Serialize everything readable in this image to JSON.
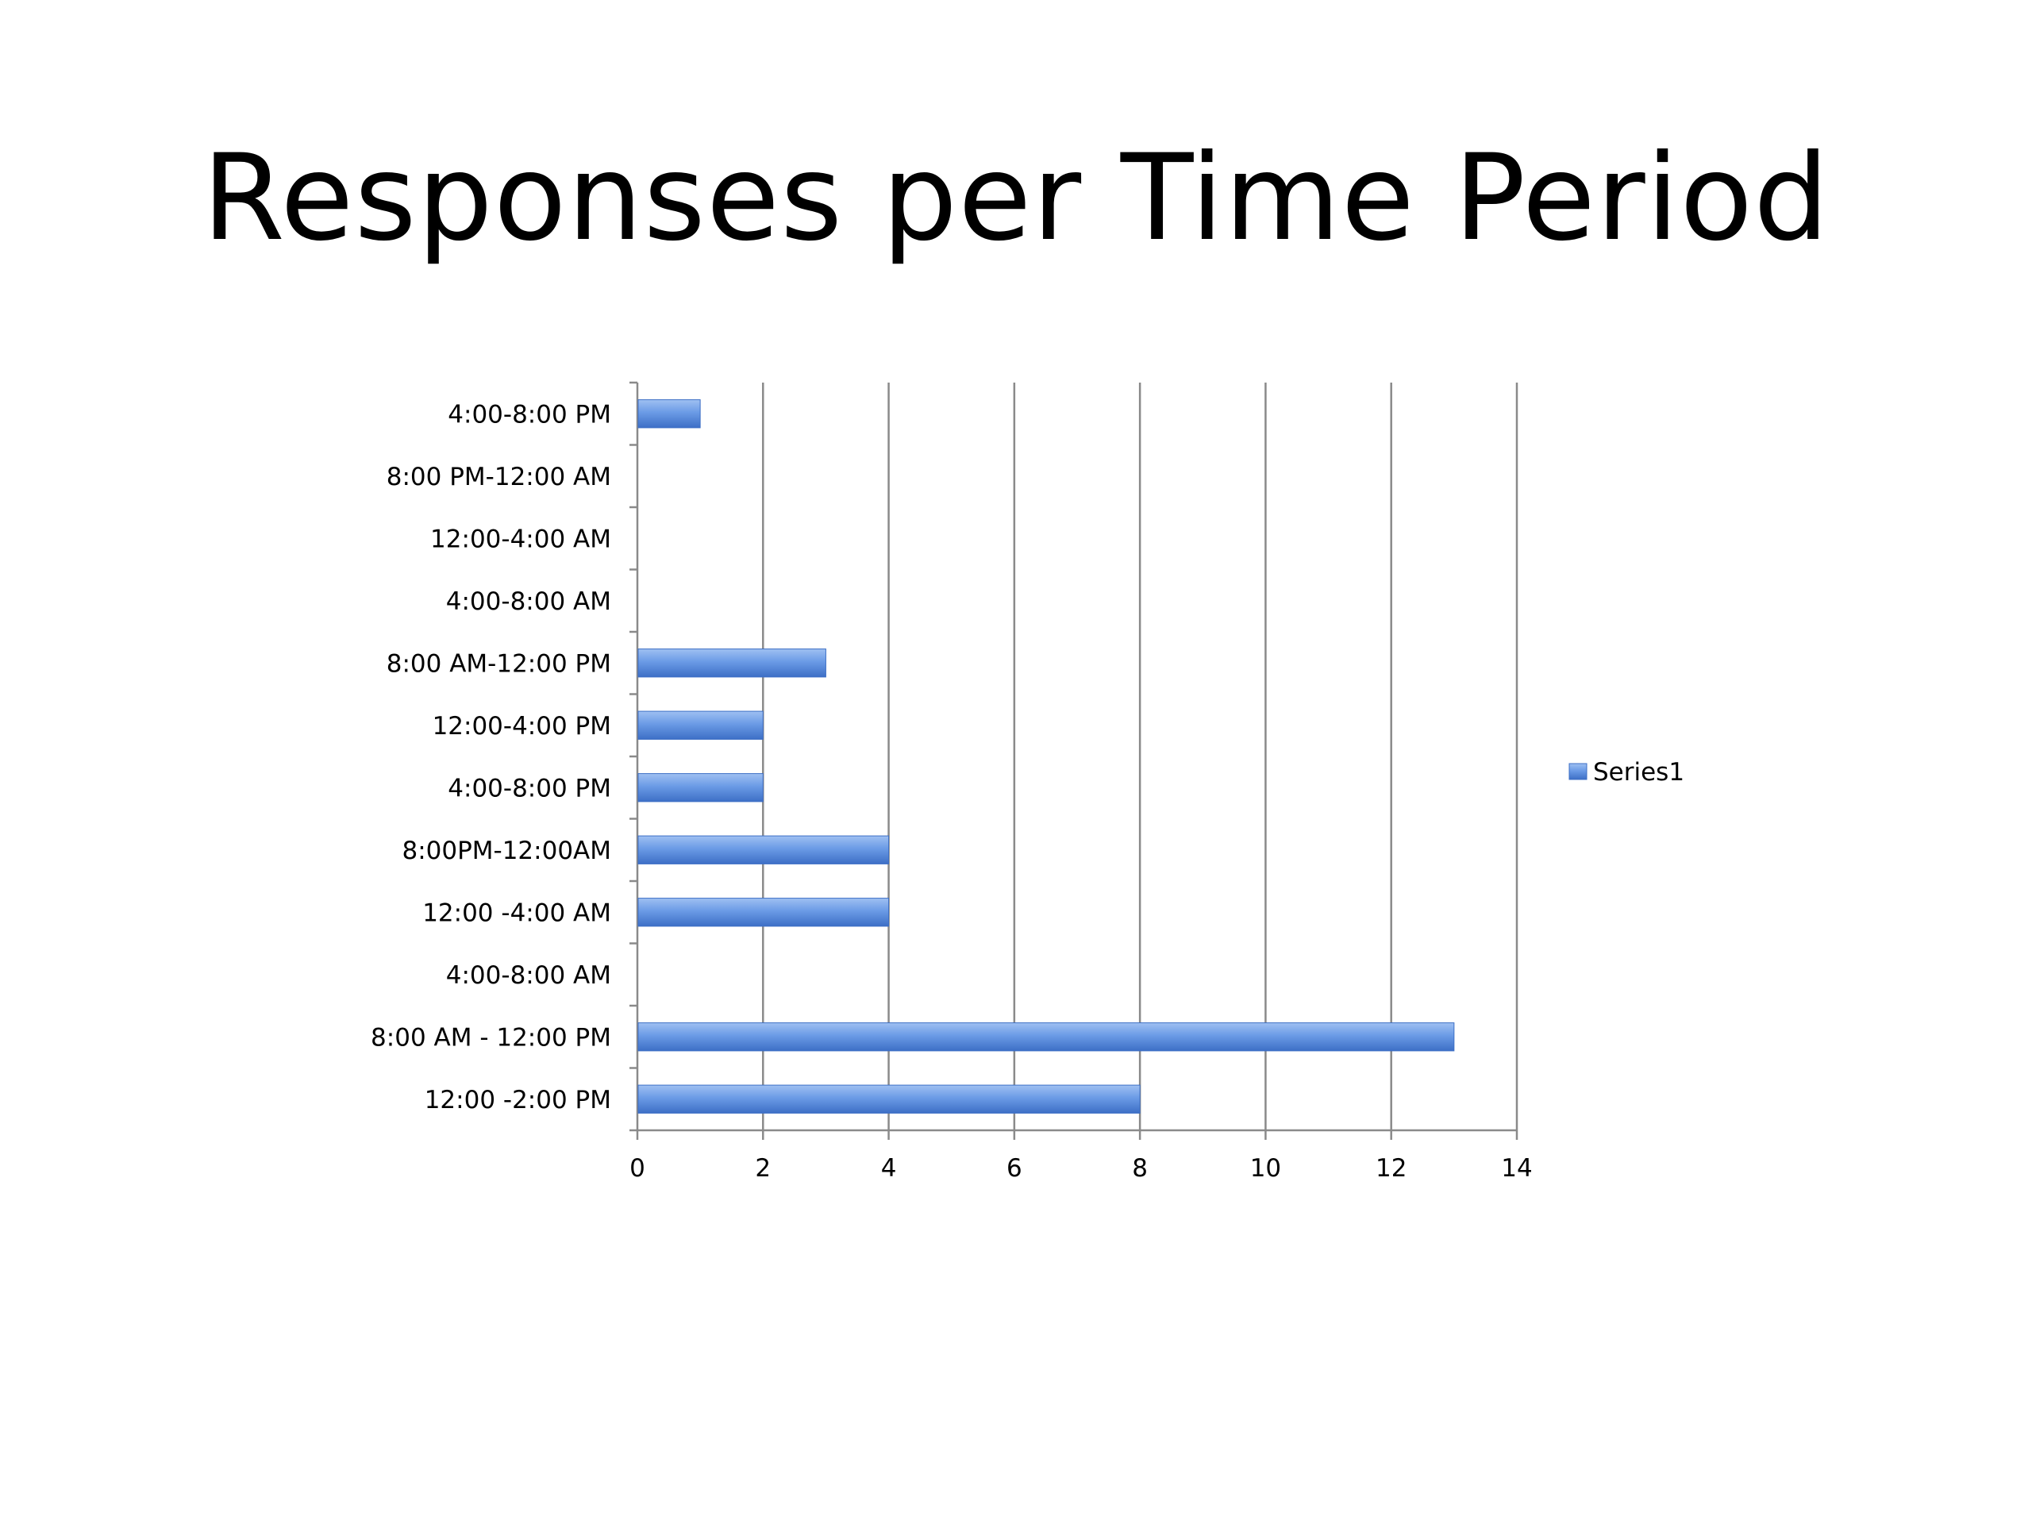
{
  "slide": {
    "title": "Responses per Time Period"
  },
  "chart_data": {
    "type": "bar",
    "orientation": "horizontal",
    "title": "Responses per Time Period",
    "categories": [
      "4:00-8:00 PM",
      "8:00 PM-12:00 AM",
      "12:00-4:00 AM",
      "4:00-8:00 AM",
      "8:00 AM-12:00 PM",
      "12:00-4:00 PM",
      "4:00-8:00 PM",
      "8:00PM-12:00AM",
      "12:00 -4:00 AM",
      "4:00-8:00 AM",
      "8:00 AM - 12:00 PM",
      "12:00 -2:00 PM"
    ],
    "series": [
      {
        "name": "Series1",
        "values": [
          1,
          0,
          0,
          0,
          3,
          2,
          2,
          4,
          4,
          0,
          13,
          8
        ],
        "color": "#5b8fe0"
      }
    ],
    "xlim": [
      0,
      14
    ],
    "xticks": [
      0,
      2,
      4,
      6,
      8,
      10,
      12,
      14
    ],
    "xtick_labels": [
      "0",
      "2",
      "4",
      "6",
      "8",
      "10",
      "12",
      "14"
    ],
    "xlabel": "",
    "ylabel": "",
    "grid": "vertical major gridlines",
    "legend": {
      "position": "right",
      "entries": [
        "Series1"
      ]
    },
    "colors": {
      "bar_fill": "#5b8fe0",
      "bar_highlight": "#9fc0f2",
      "bar_shadow": "#3d6fc6",
      "gridline": "#8a8a8a",
      "axis": "#8a8a8a"
    }
  }
}
